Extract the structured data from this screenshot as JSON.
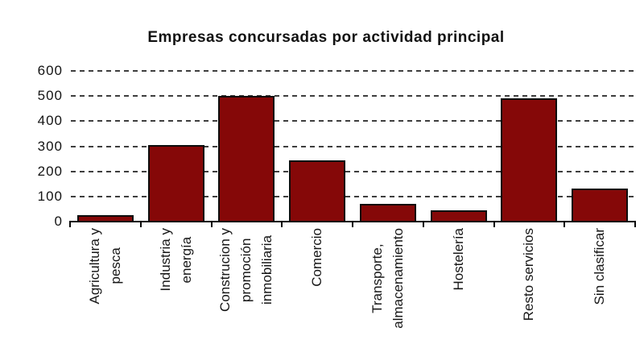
{
  "chart_data": {
    "type": "bar",
    "title": "Empresas concursadas por actividad principal",
    "categories": [
      "Agricultura y\npesca",
      "Industria y\nenergía",
      "Construcion y\npromoción\ninmobiliaria",
      "Comercio",
      "Transporte,\nalmacenamiento",
      "Hostelería",
      "Resto servicios",
      "Sin clasificar"
    ],
    "values": [
      25,
      305,
      500,
      245,
      70,
      45,
      490,
      130
    ],
    "xlabel": "",
    "ylabel": "",
    "yticks": [
      0,
      100,
      200,
      300,
      400,
      500,
      600
    ],
    "ylim": [
      0,
      600
    ],
    "grid": "horizontal-dashed",
    "legend_position": "none",
    "bar_color": "#850808",
    "bar_border_color": "#0d0d0d",
    "grid_color": "#3e3e3e",
    "axis_color": "#0a0a0a",
    "text_color": "#141414"
  }
}
